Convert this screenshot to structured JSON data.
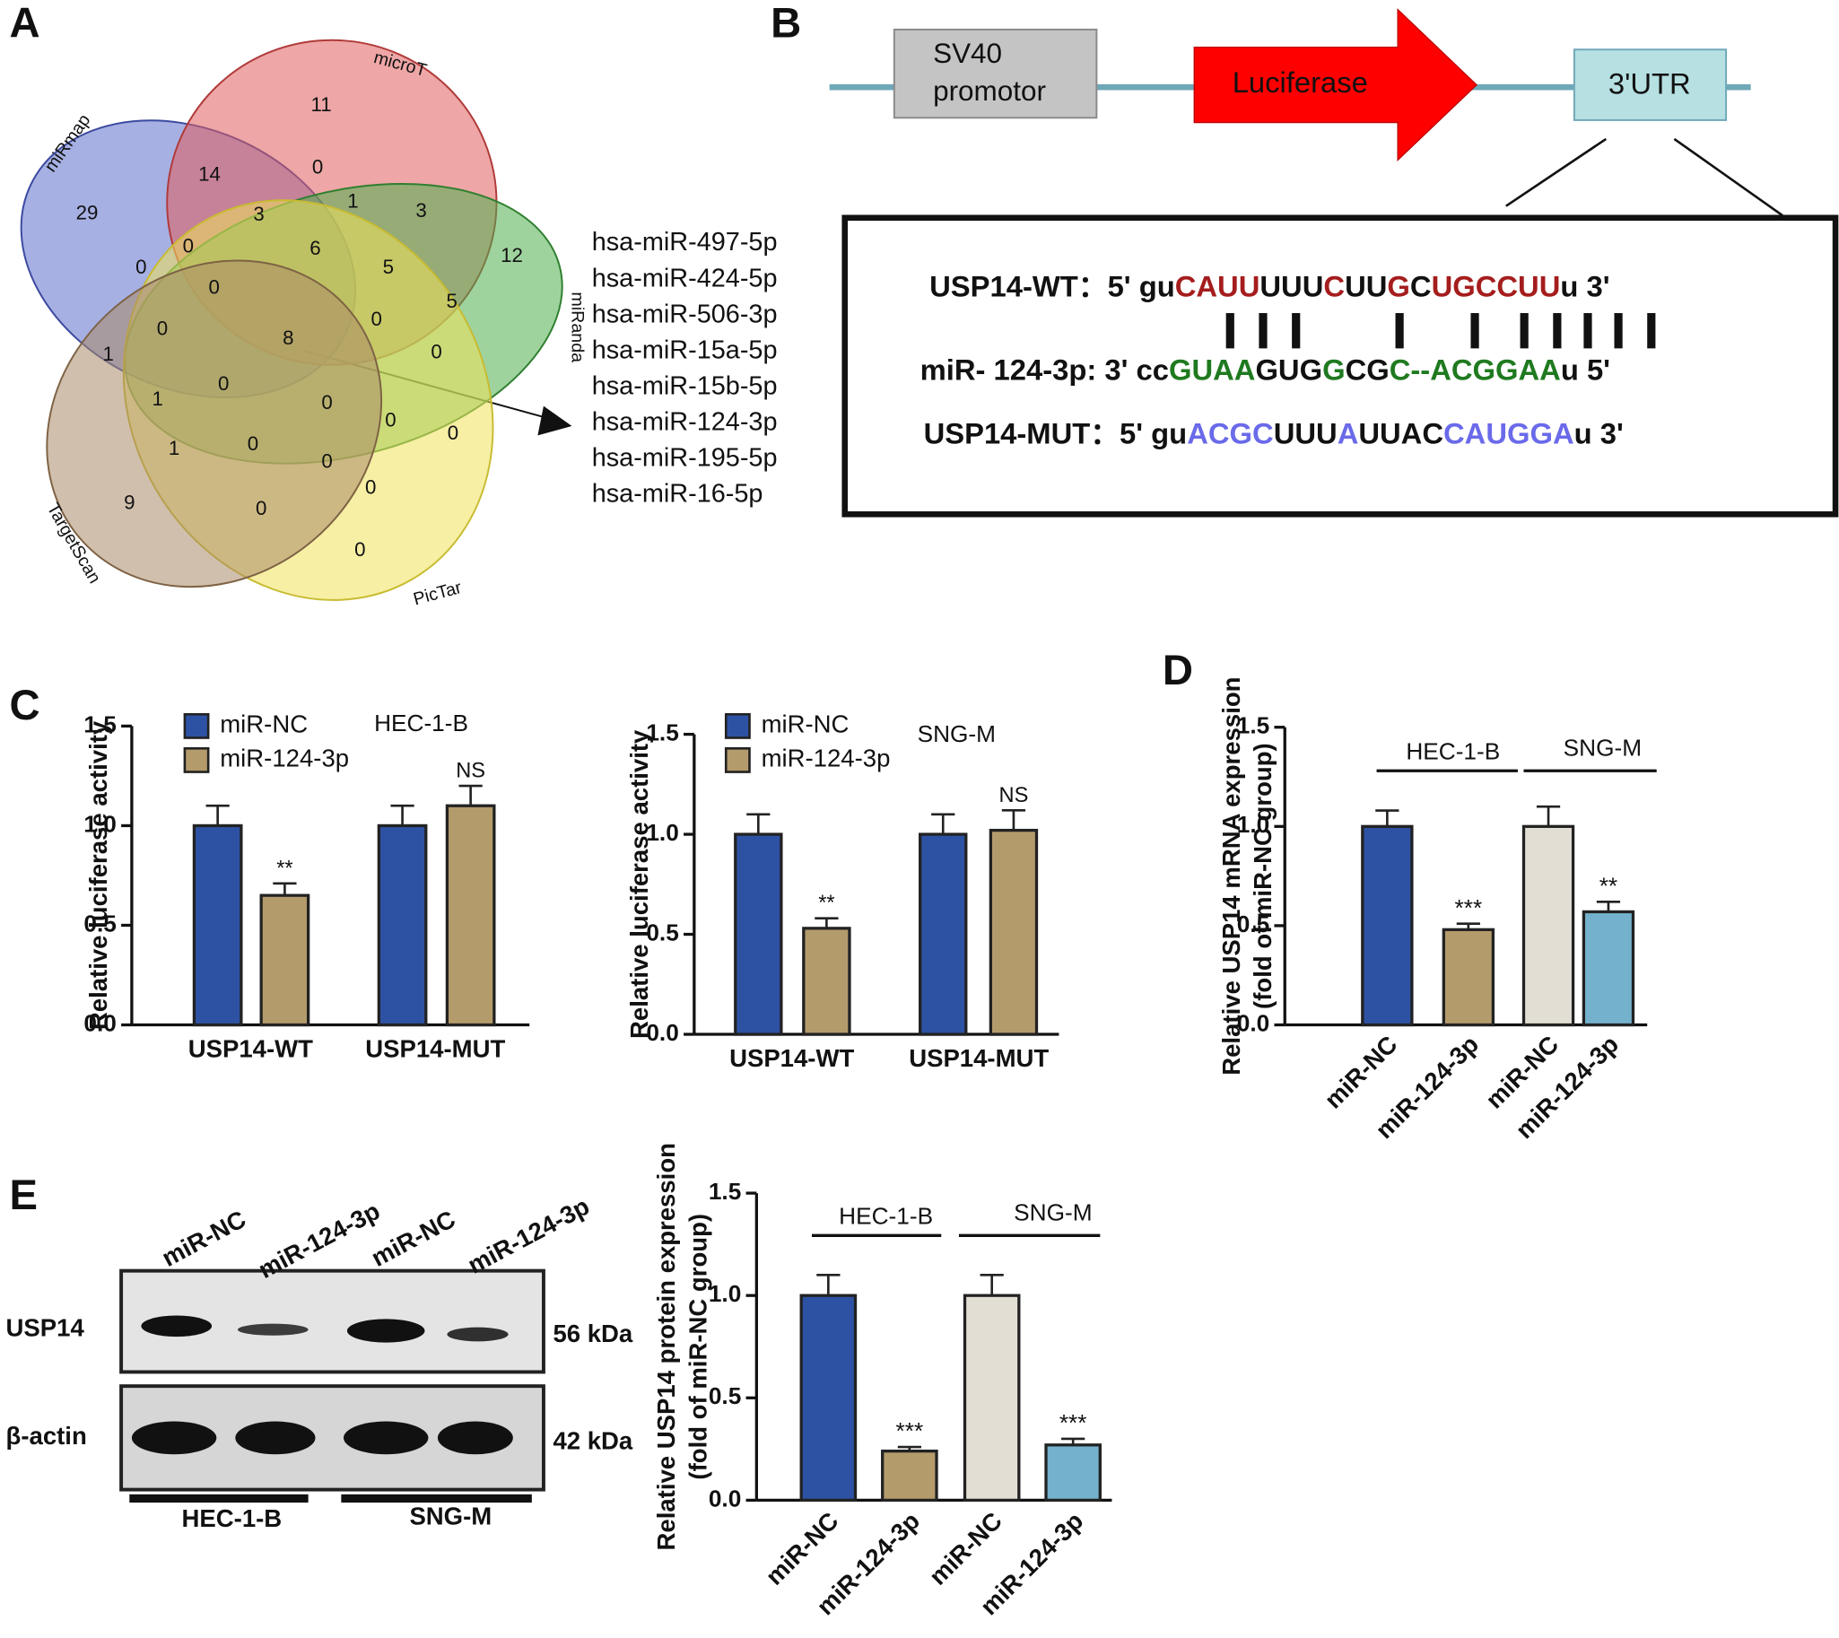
{
  "panel_letters": [
    "A",
    "B",
    "C",
    "D",
    "E"
  ],
  "venn": {
    "sets": [
      "miRmap",
      "microT",
      "miRanda",
      "PicTar",
      "TargetScan"
    ],
    "colors": [
      "#5d6fcc",
      "#e05c5c",
      "#4fae4f",
      "#eee25a",
      "#a98a68"
    ],
    "counts": [
      11,
      14,
      0,
      29,
      3,
      1,
      3,
      12,
      0,
      6,
      0,
      5,
      0,
      5,
      0,
      8,
      0,
      0,
      1,
      0,
      1,
      0,
      0,
      0,
      1,
      0,
      0,
      0,
      9,
      0,
      0
    ],
    "mirnas": [
      "hsa-miR-497-5p",
      "hsa-miR-424-5p",
      "hsa-miR-506-3p",
      "hsa-miR-15a-5p",
      "hsa-miR-15b-5p",
      "hsa-miR-124-3p",
      "hsa-miR-195-5p",
      "hsa-miR-16-5p"
    ]
  },
  "construct": {
    "promoter": [
      "SV40",
      "promotor"
    ],
    "gene": "Luciferase",
    "utr": "3'UTR",
    "rows": [
      [
        {
          "text": "USP14-WT：5' gu",
          "color": "#111111"
        },
        {
          "text": "CAUU",
          "color": "#a51d1d"
        },
        {
          "text": "UUU",
          "color": "#111111"
        },
        {
          "text": "C",
          "color": "#a51d1d"
        },
        {
          "text": "UU",
          "color": "#111111"
        },
        {
          "text": "G",
          "color": "#a51d1d"
        },
        {
          "text": "C",
          "color": "#111111"
        },
        {
          "text": "UGCCUU",
          "color": "#a51d1d"
        },
        {
          "text": "u 3'",
          "color": "#111111"
        }
      ],
      [
        {
          "text": "miR- 124-3p: 3' cc",
          "color": "#111111"
        },
        {
          "text": "GUAA",
          "color": "#1f7a1f"
        },
        {
          "text": "GUG",
          "color": "#111111"
        },
        {
          "text": "G",
          "color": "#1f7a1f"
        },
        {
          "text": "CG",
          "color": "#111111"
        },
        {
          "text": "C--ACGGAA",
          "color": "#1f7a1f"
        },
        {
          "text": "u 5'",
          "color": "#111111"
        }
      ],
      [
        {
          "text": "USP14-MUT：5' gu",
          "color": "#111111"
        },
        {
          "text": "ACGC",
          "color": "#6a6aea"
        },
        {
          "text": "UUU",
          "color": "#111111"
        },
        {
          "text": "A",
          "color": "#6a6aea"
        },
        {
          "text": "UUAC",
          "color": "#111111"
        },
        {
          "text": "CAUGGA",
          "color": "#6a6aea"
        },
        {
          "text": "u 3'",
          "color": "#111111"
        }
      ]
    ]
  },
  "blot": {
    "lanes": [
      "miR-NC",
      "miR-124-3p",
      "miR-NC",
      "miR-124-3p"
    ],
    "proteins": [
      "USP14",
      "β-actin"
    ],
    "sizes": [
      "56 kDa",
      "42 kDa"
    ],
    "groups": [
      "HEC-1-B",
      "SNG-M"
    ]
  },
  "chart_data": [
    {
      "type": "bar",
      "subtitle": "HEC-1-B",
      "ylabel": [
        "Relative luciferase activity"
      ],
      "categories": [
        "USP14-WT",
        "USP14-MUT"
      ],
      "series": [
        {
          "name": "miR-NC",
          "color": "#2e52a3",
          "values": [
            1.0,
            1.0
          ],
          "errors": [
            0.1,
            0.1
          ]
        },
        {
          "name": "miR-124-3p",
          "color": "#b49b6c",
          "values": [
            0.65,
            1.1
          ],
          "errors": [
            0.06,
            0.1
          ]
        }
      ],
      "annotations": [
        {
          "text": "**",
          "series": 1,
          "category": 0
        },
        {
          "text": "NS",
          "series": 1,
          "category": 1
        }
      ],
      "ylim": [
        0,
        1.5
      ],
      "yticks": [
        {
          "value": 0,
          "label": "0.0"
        },
        {
          "value": 0.5,
          "label": "0.5"
        },
        {
          "value": 1,
          "label": "1.0"
        },
        {
          "value": 1.5,
          "label": "1.5"
        }
      ],
      "legend": "upper left"
    },
    {
      "type": "bar",
      "subtitle": "SNG-M",
      "ylabel": [
        "Relative luciferase activity"
      ],
      "categories": [
        "USP14-WT",
        "USP14-MUT"
      ],
      "series": [
        {
          "name": "miR-NC",
          "color": "#2e52a3",
          "values": [
            1.0,
            1.0
          ],
          "errors": [
            0.1,
            0.1
          ]
        },
        {
          "name": "miR-124-3p",
          "color": "#b49b6c",
          "values": [
            0.53,
            1.02
          ],
          "errors": [
            0.05,
            0.1
          ]
        }
      ],
      "annotations": [
        {
          "text": "**",
          "series": 1,
          "category": 0
        },
        {
          "text": "NS",
          "series": 1,
          "category": 1
        }
      ],
      "ylim": [
        0,
        1.5
      ],
      "yticks": [
        {
          "value": 0,
          "label": "0.0"
        },
        {
          "value": 0.5,
          "label": "0.5"
        },
        {
          "value": 1,
          "label": "1.0"
        },
        {
          "value": 1.5,
          "label": "1.5"
        }
      ],
      "legend": "upper left"
    },
    {
      "type": "bar",
      "ylabel": [
        "Relative USP14 mRNA expression",
        "(fold of miR-NC group)"
      ],
      "categories": [
        "miR-NC",
        "miR-124-3p",
        "miR-NC",
        "miR-124-3p"
      ],
      "values": [
        1.0,
        0.48,
        1.0,
        0.57
      ],
      "errors": [
        0.08,
        0.03,
        0.1,
        0.05
      ],
      "colors": [
        "#2e52a3",
        "#b49b6c",
        "#e3ded3",
        "#74b1cc"
      ],
      "significance": [
        "***",
        "**"
      ],
      "groups": [
        "HEC-1-B",
        "SNG-M"
      ],
      "ylim": [
        0,
        1.5
      ],
      "yticks": [
        {
          "value": 0,
          "label": "0.0"
        },
        {
          "value": 0.5,
          "label": "0.5"
        },
        {
          "value": 1,
          "label": "1.0"
        },
        {
          "value": 1.5,
          "label": "1.5"
        }
      ]
    },
    {
      "type": "bar",
      "ylabel": [
        "Relative USP14 protein expression",
        "(fold of miR-NC group)"
      ],
      "categories": [
        "miR-NC",
        "miR-124-3p",
        "miR-NC",
        "miR-124-3p"
      ],
      "values": [
        1.0,
        0.24,
        1.0,
        0.27
      ],
      "errors": [
        0.1,
        0.02,
        0.1,
        0.03
      ],
      "colors": [
        "#2e52a3",
        "#b49b6c",
        "#e3ded3",
        "#74b1cc"
      ],
      "significance": [
        "***",
        "***"
      ],
      "groups": [
        "HEC-1-B",
        "SNG-M"
      ],
      "ylim": [
        0,
        1.5
      ],
      "yticks": [
        {
          "value": 0,
          "label": "0.0"
        },
        {
          "value": 0.5,
          "label": "0.5"
        },
        {
          "value": 1,
          "label": "1.0"
        },
        {
          "value": 1.5,
          "label": "1.5"
        }
      ]
    }
  ]
}
